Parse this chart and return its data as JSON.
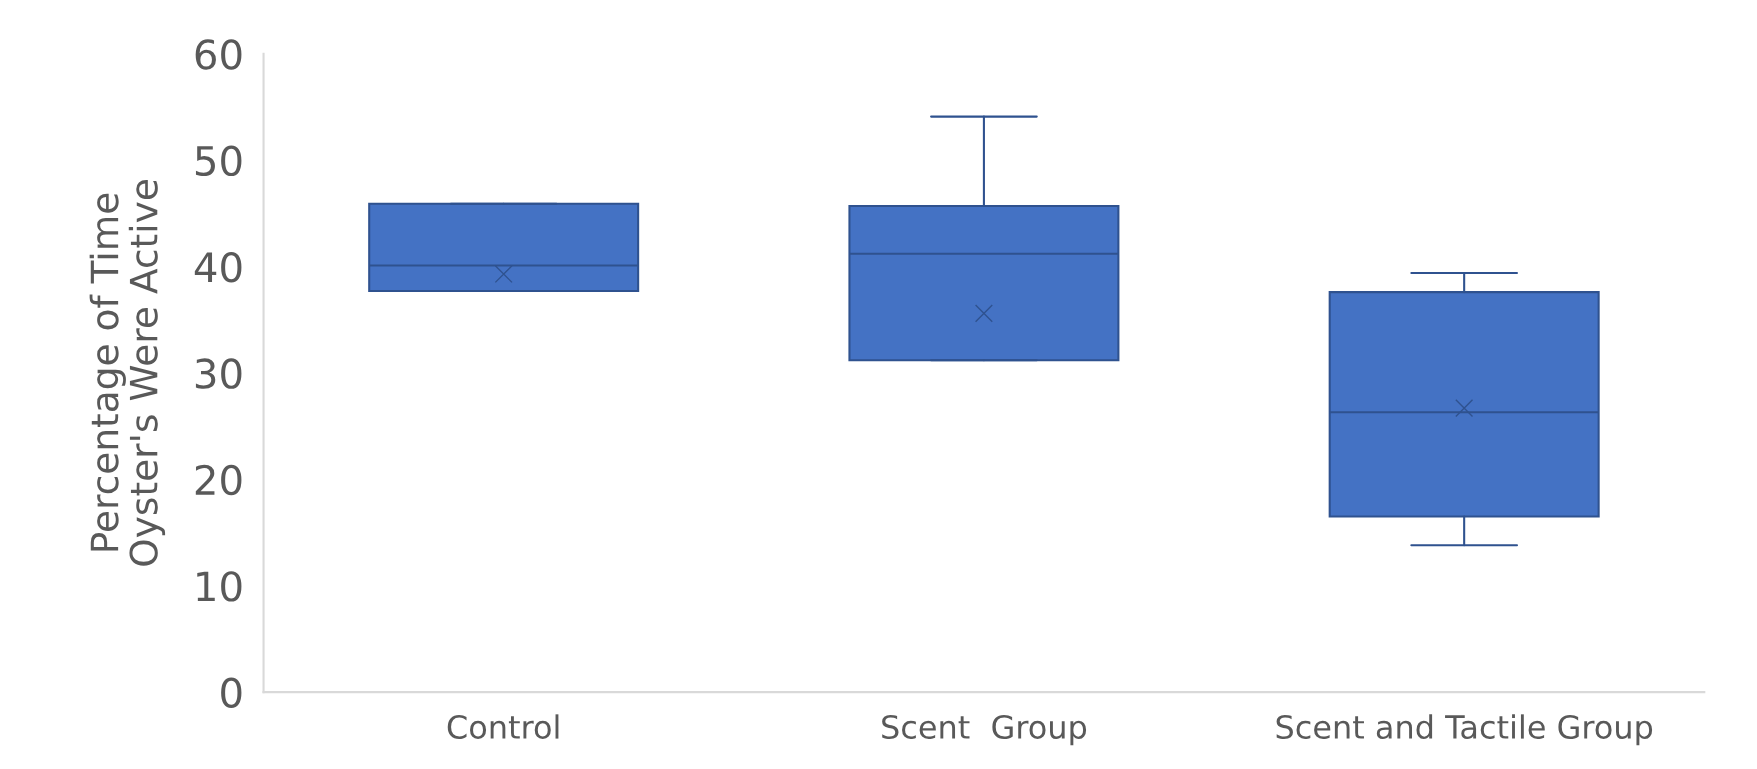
{
  "chart_data": {
    "type": "box",
    "ylabel": "Percentage of Time\nOyster's Were Active",
    "categories": [
      "Control",
      "Scent  Group",
      "Scent and Tactile Group"
    ],
    "boxes": [
      {
        "low": 37.7,
        "q1": 37.7,
        "median": 40.1,
        "q3": 45.9,
        "high": 45.9,
        "mean": 39.3
      },
      {
        "low": 31.2,
        "q1": 31.2,
        "median": 41.2,
        "q3": 45.7,
        "high": 54.1,
        "mean": 35.6
      },
      {
        "low": 13.8,
        "q1": 16.5,
        "median": 26.3,
        "q3": 37.6,
        "high": 39.4,
        "mean": 26.7
      }
    ],
    "color": "#4472c4",
    "marker": "cross",
    "ylim": [
      0,
      60
    ],
    "yticks": [
      0,
      10,
      20,
      30,
      40,
      50,
      60
    ]
  }
}
